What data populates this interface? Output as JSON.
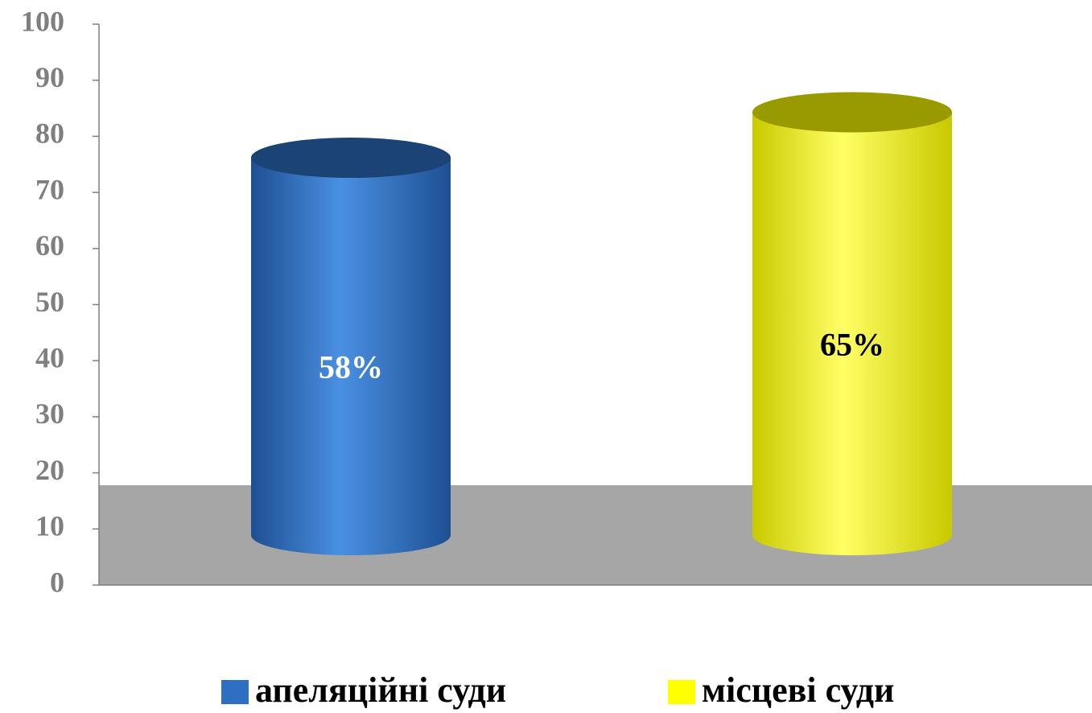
{
  "chart_data": {
    "type": "cylinder",
    "series": [
      {
        "name": "апеляційні суди",
        "color": "#2e6fc4",
        "values": [
          58
        ],
        "value_labels": [
          "58%"
        ]
      },
      {
        "name": "місцеві суди",
        "color": "#ffff00",
        "values": [
          65
        ],
        "value_labels": [
          "65%"
        ]
      }
    ],
    "ylim": [
      0,
      100
    ],
    "yticks": [
      0,
      10,
      20,
      30,
      40,
      50,
      60,
      70,
      80,
      90,
      100
    ]
  }
}
